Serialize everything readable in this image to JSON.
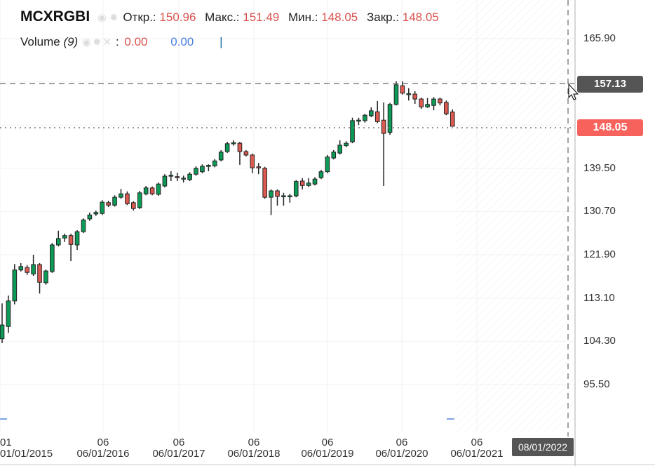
{
  "legend": {
    "symbol": "MCXRGBI",
    "open_label": "Откр.:",
    "open": "150.96",
    "high_label": "Макс.:",
    "high": "151.49",
    "low_label": "Мин.:",
    "low": "148.05",
    "close_label": "Закр.:",
    "close": "148.05",
    "icons": [
      "eye-icon",
      "gear-icon"
    ]
  },
  "volume": {
    "label": "Volume",
    "param": "(9)",
    "sep": ":",
    "value1": "0.00",
    "value2": "0.00",
    "cursor": "|",
    "icons": [
      "eye-icon",
      "gear-icon",
      "close-icon"
    ]
  },
  "price_axis": {
    "labels": [
      "165.90",
      "139.50",
      "130.70",
      "121.90",
      "113.10",
      "104.30",
      "95.50"
    ],
    "crosshair_price": "157.13",
    "last_price": "148.05"
  },
  "time_axis": {
    "labels": [
      {
        "top": "01",
        "bottom": "01/01/2015"
      },
      {
        "top": "06",
        "bottom": "06/01/2016"
      },
      {
        "top": "06",
        "bottom": "06/01/2017"
      },
      {
        "top": "06",
        "bottom": "06/01/2018"
      },
      {
        "top": "06",
        "bottom": "06/01/2019"
      },
      {
        "top": "06",
        "bottom": "06/01/2020"
      },
      {
        "top": "06",
        "bottom": "06/01/2021"
      }
    ],
    "crosshair_date": "08/01/2022"
  },
  "colors": {
    "up": "#0c9b57",
    "down": "#dc5a50",
    "last_price_tag": "#f7635c",
    "crosshair_tag": "#555555",
    "volume": "#7ea6e6"
  },
  "chart_data": {
    "type": "candlestick",
    "price_range": [
      88,
      170
    ],
    "ohlc": [
      [
        104.8,
        112.0,
        103.9,
        107.6
      ],
      [
        107.3,
        113.6,
        106.0,
        112.5
      ],
      [
        112.5,
        120.0,
        111.8,
        118.8
      ],
      [
        118.8,
        120.2,
        118.5,
        119.5
      ],
      [
        119.3,
        119.8,
        117.8,
        118.3
      ],
      [
        118.0,
        121.9,
        117.6,
        119.9
      ],
      [
        119.9,
        120.2,
        114.0,
        116.3
      ],
      [
        116.2,
        118.9,
        115.8,
        118.6
      ],
      [
        118.5,
        124.3,
        118.2,
        123.9
      ],
      [
        123.9,
        126.8,
        123.6,
        125.2
      ],
      [
        125.3,
        126.2,
        124.5,
        125.8
      ],
      [
        125.8,
        126.2,
        120.6,
        124.0
      ],
      [
        123.9,
        126.9,
        122.9,
        126.6
      ],
      [
        126.6,
        129.3,
        126.3,
        129.0
      ],
      [
        129.2,
        130.5,
        128.8,
        130.0
      ],
      [
        130.2,
        130.9,
        129.8,
        130.5
      ],
      [
        130.3,
        133.0,
        130.0,
        132.6
      ],
      [
        132.5,
        132.9,
        131.6,
        132.0
      ],
      [
        132.0,
        134.0,
        131.7,
        133.6
      ],
      [
        133.6,
        135.3,
        133.3,
        134.3
      ],
      [
        134.3,
        134.8,
        132.0,
        132.3
      ],
      [
        132.5,
        132.8,
        130.9,
        131.3
      ],
      [
        131.5,
        134.9,
        131.2,
        134.5
      ],
      [
        134.3,
        135.9,
        134.0,
        135.5
      ],
      [
        135.5,
        135.8,
        134.0,
        134.3
      ],
      [
        134.2,
        136.6,
        133.9,
        136.3
      ],
      [
        135.9,
        138.3,
        135.6,
        137.9
      ],
      [
        138.0,
        138.9,
        136.9,
        138.1
      ],
      [
        137.8,
        138.6,
        136.9,
        137.7
      ],
      [
        137.4,
        138.0,
        136.6,
        137.5
      ],
      [
        137.2,
        138.7,
        136.9,
        138.3
      ],
      [
        138.3,
        139.9,
        138.0,
        139.5
      ],
      [
        138.8,
        140.3,
        138.5,
        139.9
      ],
      [
        140.0,
        140.3,
        138.9,
        140.1
      ],
      [
        140.0,
        141.4,
        139.7,
        141.0
      ],
      [
        141.2,
        143.2,
        140.9,
        142.8
      ],
      [
        142.9,
        144.9,
        142.6,
        144.5
      ],
      [
        144.6,
        145.2,
        144.1,
        144.7
      ],
      [
        144.6,
        144.9,
        140.2,
        142.9
      ],
      [
        142.9,
        143.2,
        141.9,
        142.2
      ],
      [
        142.2,
        142.5,
        138.5,
        139.6
      ],
      [
        139.8,
        140.6,
        138.3,
        139.7
      ],
      [
        139.5,
        139.8,
        133.3,
        133.6
      ],
      [
        133.6,
        135.2,
        130.0,
        134.9
      ],
      [
        134.9,
        135.2,
        131.9,
        133.8
      ],
      [
        133.8,
        134.5,
        131.9,
        133.9
      ],
      [
        133.7,
        134.3,
        132.5,
        133.9
      ],
      [
        133.9,
        137.1,
        133.6,
        136.8
      ],
      [
        136.9,
        137.5,
        135.2,
        136.0
      ],
      [
        136.0,
        137.5,
        135.7,
        136.5
      ],
      [
        136.3,
        137.7,
        136.0,
        137.3
      ],
      [
        137.6,
        139.2,
        137.3,
        138.8
      ],
      [
        138.8,
        142.2,
        138.5,
        141.8
      ],
      [
        141.6,
        143.2,
        141.3,
        142.8
      ],
      [
        142.6,
        145.2,
        142.3,
        144.2
      ],
      [
        144.1,
        145.0,
        143.8,
        144.6
      ],
      [
        144.9,
        149.8,
        144.6,
        149.2
      ],
      [
        149.2,
        149.8,
        148.3,
        149.3
      ],
      [
        149.2,
        150.6,
        148.8,
        150.3
      ],
      [
        150.2,
        151.9,
        149.9,
        151.2
      ],
      [
        151.0,
        153.2,
        148.7,
        149.0
      ],
      [
        149.3,
        152.9,
        135.9,
        146.6
      ],
      [
        146.8,
        152.8,
        146.3,
        152.5
      ],
      [
        152.5,
        157.2,
        152.3,
        156.5
      ],
      [
        156.3,
        157.2,
        154.5,
        154.8
      ],
      [
        154.6,
        155.8,
        153.3,
        154.7
      ],
      [
        154.6,
        155.2,
        152.6,
        153.6
      ],
      [
        153.6,
        153.9,
        151.6,
        152.0
      ],
      [
        152.0,
        153.8,
        151.8,
        152.5
      ],
      [
        152.3,
        154.0,
        151.3,
        153.6
      ],
      [
        153.6,
        153.9,
        152.3,
        152.8
      ],
      [
        152.9,
        153.3,
        150.3,
        150.6
      ],
      [
        150.96,
        151.49,
        148.05,
        148.05
      ]
    ]
  }
}
